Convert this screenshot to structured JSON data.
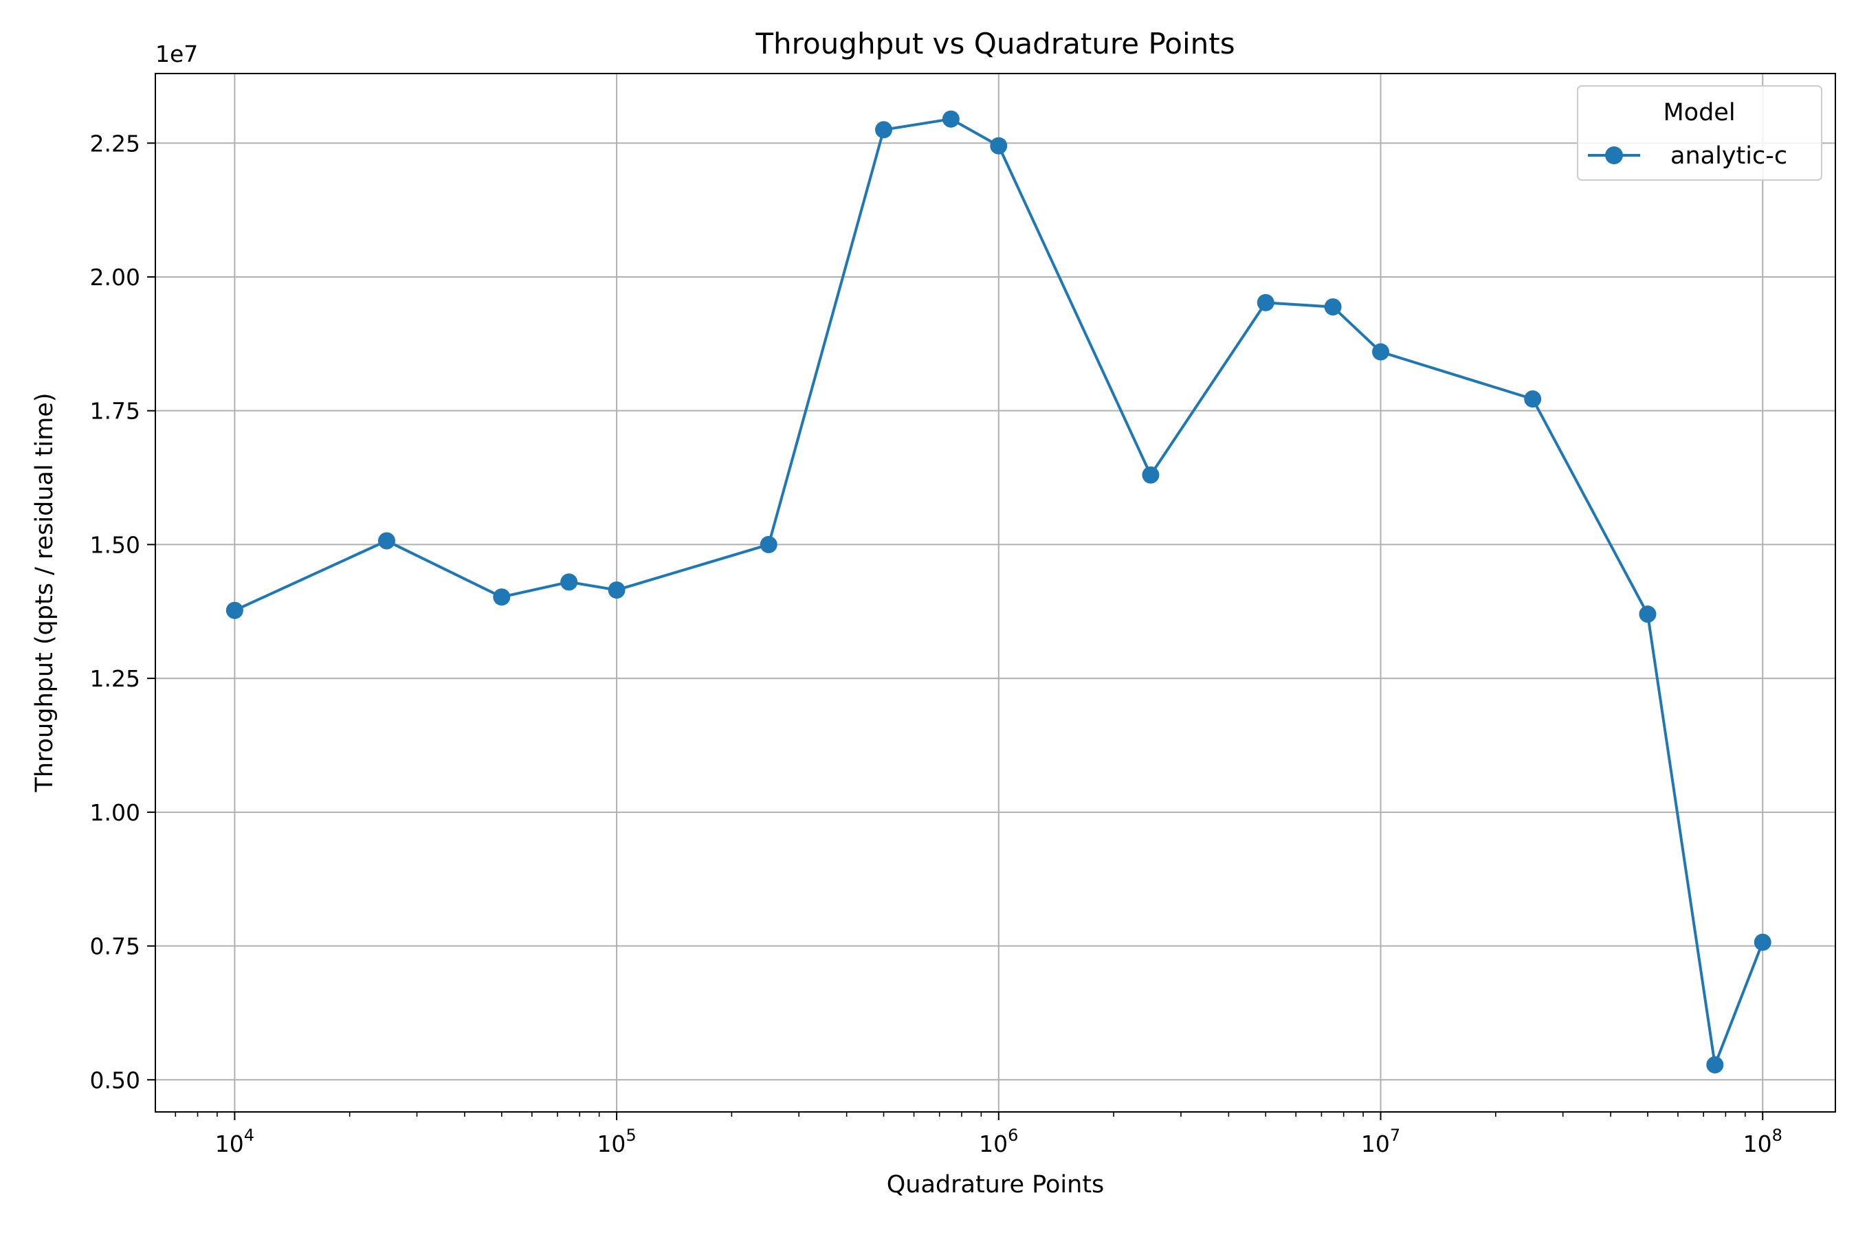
{
  "chart_data": {
    "type": "line",
    "title": "Throughput vs Quadrature Points",
    "xlabel": "Quadrature Points",
    "ylabel": "Throughput (qpts / residual time)",
    "x_scale": "log",
    "y_multiplier_label": "1e7",
    "xlim": [
      6200,
      155000000
    ],
    "ylim": [
      4400000,
      23800000
    ],
    "x_ticks": [
      {
        "value": 10000,
        "base": "10",
        "exp": "4"
      },
      {
        "value": 100000,
        "base": "10",
        "exp": "5"
      },
      {
        "value": 1000000,
        "base": "10",
        "exp": "6"
      },
      {
        "value": 10000000,
        "base": "10",
        "exp": "7"
      },
      {
        "value": 100000000,
        "base": "10",
        "exp": "8"
      }
    ],
    "y_ticks": [
      {
        "value": 5000000,
        "label": "0.50"
      },
      {
        "value": 7500000,
        "label": "0.75"
      },
      {
        "value": 10000000,
        "label": "1.00"
      },
      {
        "value": 12500000,
        "label": "1.25"
      },
      {
        "value": 15000000,
        "label": "1.50"
      },
      {
        "value": 17500000,
        "label": "1.75"
      },
      {
        "value": 20000000,
        "label": "2.00"
      },
      {
        "value": 22500000,
        "label": "2.25"
      }
    ],
    "grid": true,
    "legend": {
      "title": "Model",
      "placement": "top-right"
    },
    "series": [
      {
        "name": "analytic-c",
        "color": "#1f77b4",
        "marker": "circle",
        "x": [
          10000,
          25000,
          50000,
          75000,
          100000,
          250000,
          500000,
          750000,
          1000000,
          2500000,
          5000000,
          7500000,
          10000000,
          25000000,
          50000000,
          75000000,
          100000000
        ],
        "y": [
          13770000,
          15070000,
          14020000,
          14300000,
          14150000,
          15000000,
          22750000,
          22950000,
          22450000,
          16300000,
          19520000,
          19440000,
          18600000,
          17720000,
          13700000,
          5280000,
          7570000
        ]
      }
    ]
  }
}
